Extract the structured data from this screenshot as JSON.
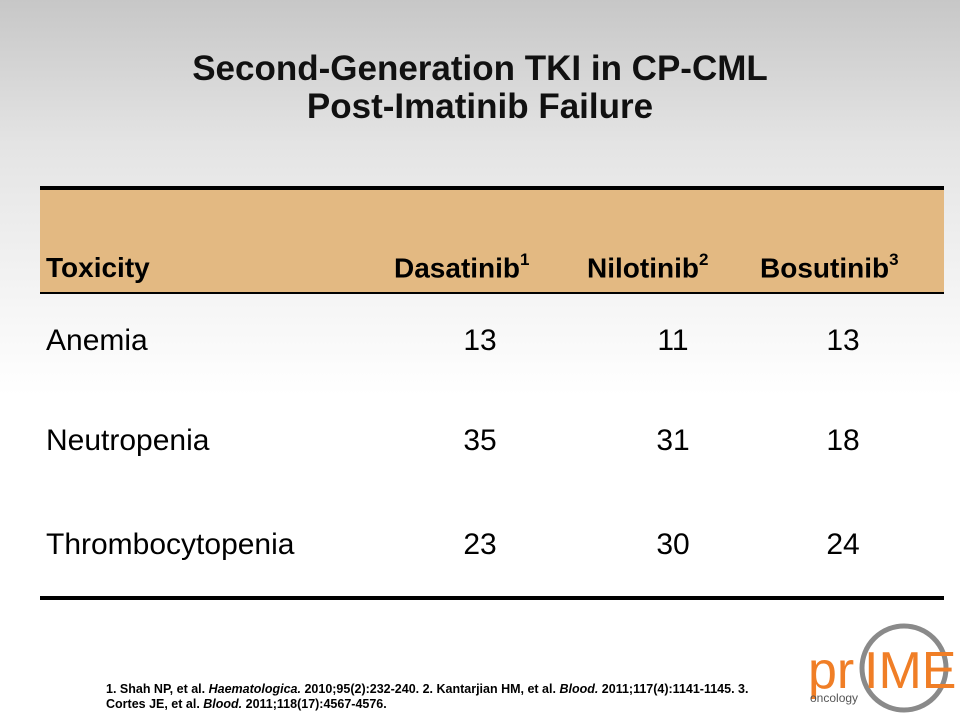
{
  "title": {
    "line1": "Second-Generation TKI in CP-CML",
    "line2": "Post-Imatinib Failure"
  },
  "table": {
    "headers": [
      {
        "label": "Toxicity",
        "sup": ""
      },
      {
        "label": "Dasatinib",
        "sup": "1"
      },
      {
        "label": "Nilotinib",
        "sup": "2"
      },
      {
        "label": "Bosutinib",
        "sup": "3"
      }
    ],
    "rows": [
      {
        "label": "Anemia",
        "values": [
          "13",
          "11",
          "13"
        ]
      },
      {
        "label": "Neutropenia",
        "values": [
          "35",
          "31",
          "18"
        ]
      },
      {
        "label": "Thrombocytopenia",
        "values": [
          "23",
          "30",
          "24"
        ]
      }
    ]
  },
  "references": {
    "r1_pre": "1. Shah NP, et al. ",
    "r1_journal": "Haematologica.",
    "r1_post": " 2010;95(2):232-240. 2. Kantarjian HM, et al. ",
    "r2_journal": "Blood.",
    "r2_post": " 2011;117(4):1141-1145. 3. Cortes JE, et al. ",
    "r3_journal": "Blood.",
    "r3_post": " 2011;118(17):4567-4576."
  },
  "logo": {
    "text_pr": "pr",
    "text_ime": "IME",
    "sub": "oncology",
    "colors": {
      "accent": "#f07e26",
      "ring": "#8a8a8a"
    }
  },
  "colors": {
    "header_band": "#e3b982",
    "rule": "#000000"
  }
}
